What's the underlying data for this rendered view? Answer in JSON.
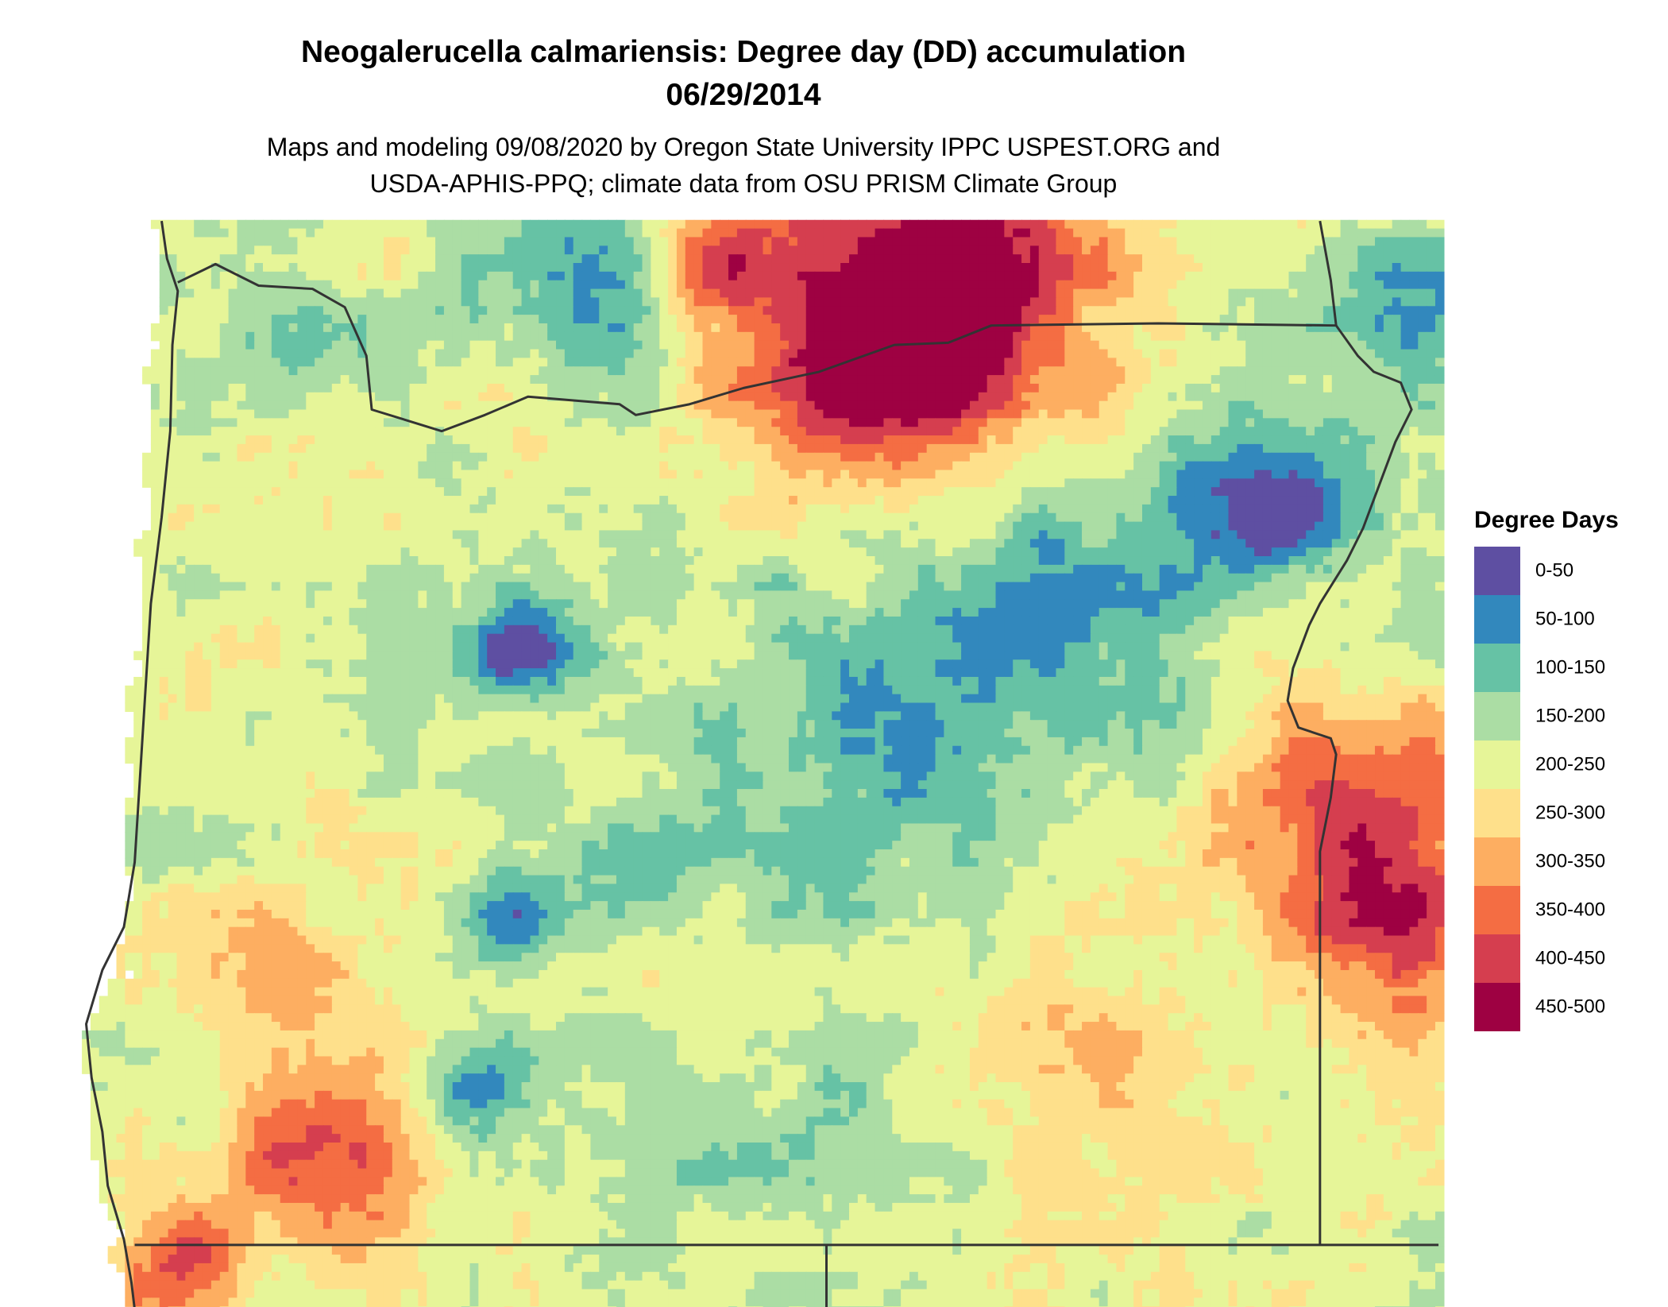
{
  "header": {
    "title_line1": "Neogalerucella calmariensis: Degree day (DD) accumulation",
    "title_line2": "06/29/2014",
    "subtitle_line1": "Maps and modeling 09/08/2020 by Oregon State University IPPC USPEST.ORG and",
    "subtitle_line2": "USDA-APHIS-PPQ; climate data from OSU PRISM Climate Group"
  },
  "legend": {
    "title": "Degree Days",
    "items": [
      {
        "label": "0-50",
        "color": "#5e4fa2"
      },
      {
        "label": "50-100",
        "color": "#3288bd"
      },
      {
        "label": "100-150",
        "color": "#66c2a5"
      },
      {
        "label": "150-200",
        "color": "#abdda4"
      },
      {
        "label": "200-250",
        "color": "#e6f598"
      },
      {
        "label": "250-300",
        "color": "#fee08b"
      },
      {
        "label": "300-350",
        "color": "#fdae61"
      },
      {
        "label": "350-400",
        "color": "#f46d43"
      },
      {
        "label": "400-450",
        "color": "#d53e4f"
      },
      {
        "label": "450-500",
        "color": "#9e0142"
      }
    ]
  }
}
